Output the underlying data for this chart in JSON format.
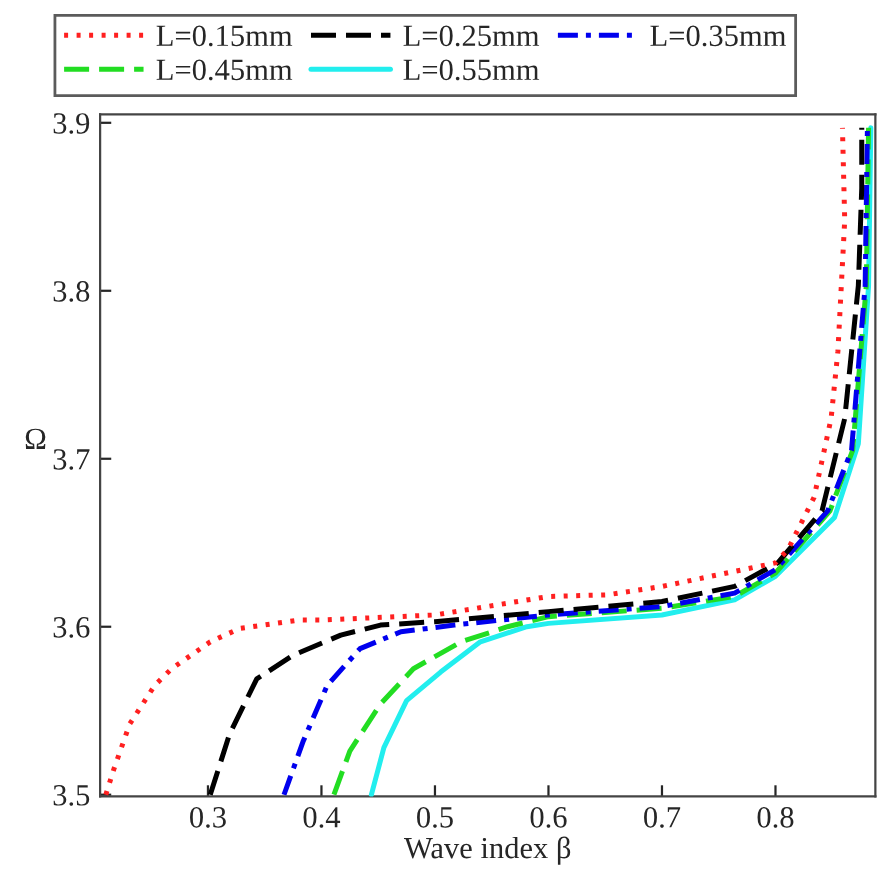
{
  "chart_data": {
    "type": "line",
    "xlabel": "Wave index β",
    "ylabel": "Ω",
    "xlim": [
      0.205,
      0.888
    ],
    "ylim": [
      3.499,
      3.905
    ],
    "xticks": [
      0.3,
      0.4,
      0.5,
      0.6,
      0.7,
      0.8
    ],
    "yticks": [
      3.5,
      3.6,
      3.7,
      3.8,
      3.9
    ],
    "grid": false,
    "legend": "top",
    "series": [
      {
        "name": "L=0.15mm",
        "color": "#ff2020",
        "line_style": "dotted",
        "x": [
          0.21,
          0.217,
          0.231,
          0.253,
          0.268,
          0.302,
          0.328,
          0.381,
          0.4,
          0.5,
          0.6,
          0.652,
          0.7,
          0.8,
          0.811,
          0.834,
          0.849,
          0.855,
          0.861,
          0.859
        ],
        "values": [
          3.5,
          3.515,
          3.542,
          3.565,
          3.575,
          3.591,
          3.599,
          3.604,
          3.604,
          3.607,
          3.618,
          3.619,
          3.624,
          3.638,
          3.646,
          3.677,
          3.724,
          3.764,
          3.842,
          3.897
        ]
      },
      {
        "name": "L=0.25mm",
        "color": "#000000",
        "line_style": "dashed",
        "x": [
          0.302,
          0.319,
          0.343,
          0.375,
          0.417,
          0.452,
          0.5,
          0.6,
          0.7,
          0.764,
          0.802,
          0.841,
          0.861,
          0.873,
          0.876,
          0.876
        ],
        "values": [
          3.5,
          3.536,
          3.569,
          3.583,
          3.595,
          3.601,
          3.603,
          3.609,
          3.615,
          3.624,
          3.638,
          3.669,
          3.724,
          3.803,
          3.861,
          3.897
        ]
      },
      {
        "name": "L=0.35mm",
        "color": "#0000ee",
        "line_style": "dashdot",
        "x": [
          0.367,
          0.384,
          0.405,
          0.434,
          0.47,
          0.517,
          0.6,
          0.7,
          0.764,
          0.8,
          0.846,
          0.867,
          0.879,
          0.881
        ],
        "values": [
          3.5,
          3.532,
          3.565,
          3.587,
          3.597,
          3.601,
          3.607,
          3.612,
          3.62,
          3.634,
          3.669,
          3.705,
          3.803,
          3.897
        ]
      },
      {
        "name": "L=0.45mm",
        "color": "#22dd22",
        "line_style": "dashed",
        "x": [
          0.411,
          0.425,
          0.452,
          0.481,
          0.523,
          0.564,
          0.6,
          0.7,
          0.764,
          0.8,
          0.848,
          0.868,
          0.88,
          0.882
        ],
        "values": [
          3.5,
          3.526,
          3.554,
          3.575,
          3.591,
          3.6,
          3.606,
          3.611,
          3.618,
          3.632,
          3.669,
          3.705,
          3.803,
          3.897
        ]
      },
      {
        "name": "L=0.55mm",
        "color": "#22eeee",
        "line_style": "solid",
        "x": [
          0.444,
          0.455,
          0.475,
          0.505,
          0.54,
          0.581,
          0.6,
          0.7,
          0.764,
          0.8,
          0.852,
          0.873,
          0.882,
          0.884
        ],
        "values": [
          3.5,
          3.528,
          3.556,
          3.573,
          3.591,
          3.6,
          3.602,
          3.607,
          3.616,
          3.63,
          3.665,
          3.709,
          3.803,
          3.897
        ]
      }
    ]
  }
}
